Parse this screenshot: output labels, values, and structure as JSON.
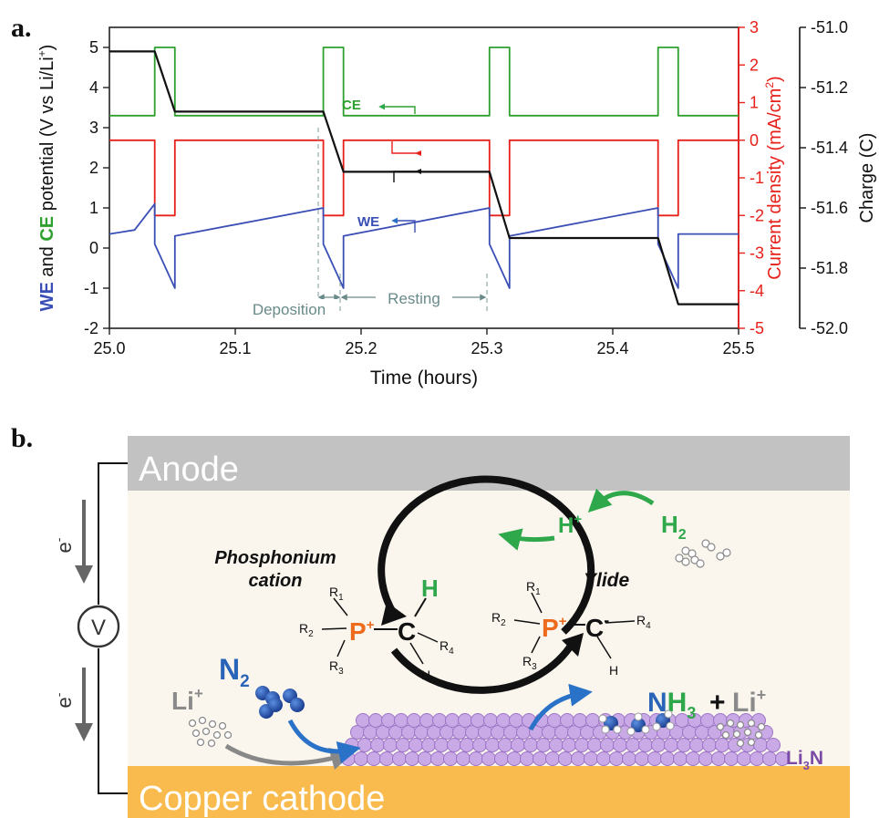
{
  "panel_a": {
    "label": "a.",
    "x_label": "Time (hours)",
    "y_left_label_parts": [
      "WE",
      " and ",
      "CE",
      " potential (V vs Li/Li",
      "+",
      ")"
    ],
    "y_right1_label_parts": [
      "Current density (mA/cm",
      "2",
      ")"
    ],
    "y_right2_label": "Charge (C)",
    "x_ticks": [
      "25.0",
      "25.1",
      "25.2",
      "25.3",
      "25.4",
      "25.5"
    ],
    "y_left_ticks": [
      "-2",
      "-1",
      "0",
      "1",
      "2",
      "3",
      "4",
      "5"
    ],
    "y_right1_ticks": [
      "-5",
      "-4",
      "-3",
      "-2",
      "-1",
      "0",
      "1",
      "2",
      "3"
    ],
    "y_right2_ticks": [
      "-52.0",
      "-51.8",
      "-51.6",
      "-51.4",
      "-51.2",
      "-51.0"
    ],
    "annotations": {
      "ce": "CE",
      "we": "WE",
      "deposition": "Deposition",
      "resting": "Resting"
    },
    "colors": {
      "we": "#3a4fb5",
      "ce": "#2ea02e",
      "current": "#e8201a",
      "charge": "#111111"
    }
  },
  "chart_data": {
    "type": "line",
    "xlabel": "Time (hours)",
    "xlim": [
      25.0,
      25.5
    ],
    "axes": [
      {
        "name": "potential",
        "ylim": [
          -2,
          5.5
        ]
      },
      {
        "name": "current density",
        "ylim": [
          -5,
          3
        ]
      },
      {
        "name": "charge",
        "ylim": [
          -52.0,
          -51.0
        ]
      }
    ],
    "series": [
      {
        "name": "CE",
        "axis": "potential",
        "x": [
          25.0,
          25.036,
          25.036,
          25.052,
          25.052,
          25.17,
          25.17,
          25.186,
          25.186,
          25.302,
          25.302,
          25.318,
          25.318,
          25.436,
          25.436,
          25.452,
          25.452,
          25.5
        ],
        "y": [
          3.3,
          3.3,
          5.0,
          5.0,
          3.3,
          3.3,
          5.0,
          5.0,
          3.3,
          3.3,
          5.0,
          5.0,
          3.3,
          3.3,
          5.0,
          5.0,
          3.3,
          3.3
        ]
      },
      {
        "name": "WE",
        "axis": "potential",
        "x": [
          25.0,
          25.02,
          25.036,
          25.036,
          25.052,
          25.052,
          25.17,
          25.17,
          25.186,
          25.186,
          25.302,
          25.302,
          25.318,
          25.318,
          25.436,
          25.436,
          25.452,
          25.452,
          25.5
        ],
        "y": [
          0.35,
          0.45,
          1.1,
          0.1,
          -1.0,
          0.3,
          1.0,
          0.1,
          -1.0,
          0.3,
          1.0,
          0.1,
          -1.0,
          0.3,
          1.0,
          0.1,
          -1.0,
          0.35,
          0.35
        ]
      },
      {
        "name": "current density",
        "axis": "current density",
        "x": [
          25.0,
          25.036,
          25.036,
          25.052,
          25.052,
          25.17,
          25.17,
          25.186,
          25.186,
          25.302,
          25.302,
          25.318,
          25.318,
          25.436,
          25.436,
          25.452,
          25.452,
          25.5
        ],
        "y": [
          0,
          0,
          -2,
          -2,
          0,
          0,
          -2,
          -2,
          0,
          0,
          -2,
          -2,
          0,
          0,
          -2,
          -2,
          0,
          0
        ]
      },
      {
        "name": "charge",
        "axis": "charge",
        "x": [
          25.0,
          25.036,
          25.052,
          25.17,
          25.186,
          25.302,
          25.318,
          25.436,
          25.452,
          25.5
        ],
        "y": [
          -51.08,
          -51.08,
          -51.28,
          -51.28,
          -51.48,
          -51.48,
          -51.7,
          -51.7,
          -51.92,
          -51.92
        ]
      }
    ]
  },
  "panel_b": {
    "label": "b.",
    "anode": "Anode",
    "cathode": "Copper cathode",
    "electron_top": "e",
    "electron_bottom": "e",
    "electron_sup": "-",
    "voltmeter": "V",
    "phosphonium_line1": "Phosphonium",
    "phosphonium_line2": "cation",
    "ylide": "Ylide",
    "h_plus": "H",
    "h_plus_sup": "+",
    "h2": "H",
    "h2_sub": "2",
    "li_plus_left": "Li",
    "li_plus_left_sup": "+",
    "n2": "N",
    "n2_sub": "2",
    "nh3_n": "N",
    "nh3_h": "H",
    "nh3_sub": "3",
    "plus": "+",
    "li_plus_right": "Li",
    "li_plus_right_sup": "+",
    "li3n_li": "Li",
    "li3n_sub": "3",
    "li3n_n": "N",
    "left_mol": {
      "p": "P",
      "p_sup": "+",
      "c": "C",
      "h_green": "H",
      "h": "H",
      "r1": "R",
      "r2": "R",
      "r3": "R",
      "r4": "R",
      "s1": "1",
      "s2": "2",
      "s3": "3",
      "s4": "4"
    },
    "right_mol": {
      "p": "P",
      "p_sup": "+",
      "c": "C",
      "c_sup": "-",
      "h": "H",
      "r1": "R",
      "r2": "R",
      "r3": "R",
      "r4": "R",
      "s1": "1",
      "s2": "2",
      "s3": "3",
      "s4": "4"
    },
    "colors": {
      "anode": "#c2c2c2",
      "cathode": "#f9bb4e",
      "background": "#faf6ee",
      "green": "#2ea84a",
      "blue": "#2a64b8",
      "orange": "#ee6a1c",
      "purple": "#7a4aa6",
      "lattice": "#c9a9e6"
    }
  }
}
